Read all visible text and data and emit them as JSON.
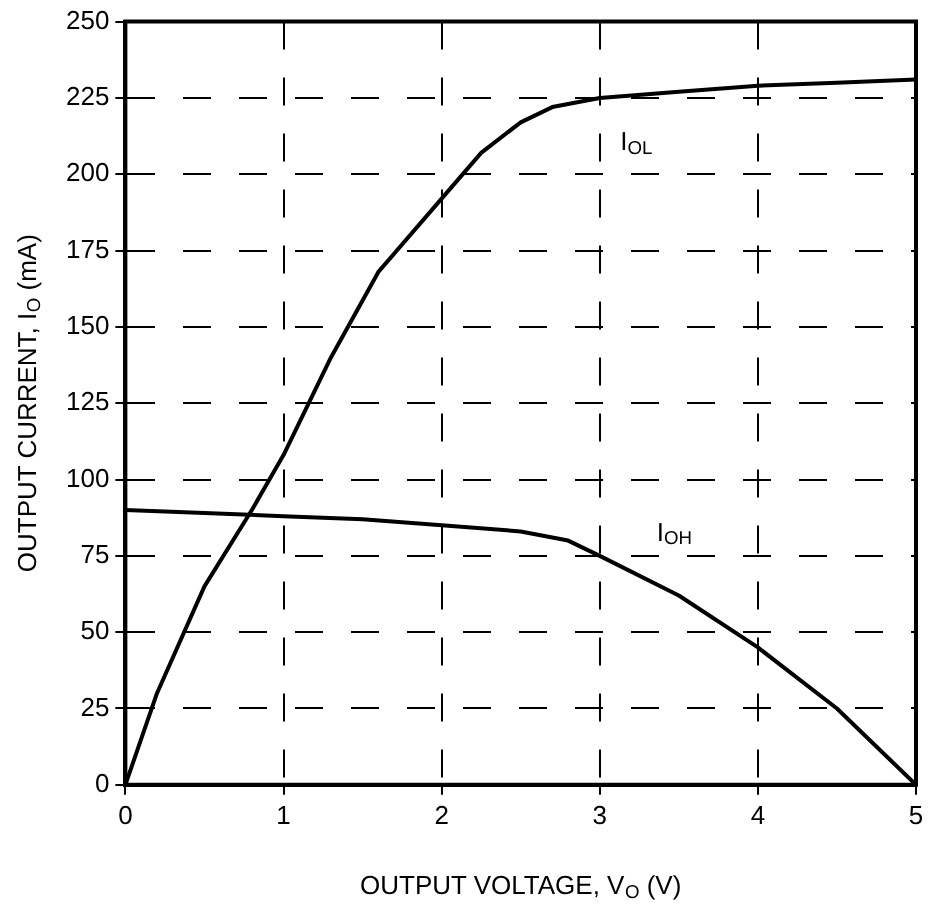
{
  "chart_data": {
    "type": "line",
    "xlabel": "OUTPUT VOLTAGE, V$_{O}$ (V)",
    "ylabel": "OUTPUT CURRENT, I$_{O}$ (mA)",
    "xlim": [
      0,
      5
    ],
    "xticks": [
      0,
      1,
      2,
      3,
      4,
      5
    ],
    "ylim": [
      0,
      250
    ],
    "yticks": [
      0,
      25,
      50,
      75,
      100,
      125,
      150,
      175,
      200,
      225,
      250
    ],
    "grid": true,
    "legend": false,
    "marker": "none",
    "line_style": "solid",
    "series": [
      {
        "name": "I$_{OL}$",
        "color": "#000000",
        "x": [
          0,
          0.2,
          0.5,
          0.8,
          1,
          1.3,
          1.6,
          2,
          2.25,
          2.5,
          2.7,
          3,
          3.5,
          4,
          4.5,
          5
        ],
        "values": [
          0,
          30,
          65,
          90,
          108,
          140,
          168,
          192,
          207,
          217,
          222,
          225,
          227,
          229,
          230,
          231
        ]
      },
      {
        "name": "I$_{OH}$",
        "color": "#000000",
        "x": [
          0,
          0.5,
          1,
          1.5,
          2,
          2.5,
          2.8,
          3,
          3.5,
          4,
          4.5,
          5
        ],
        "values": [
          90,
          89,
          88,
          87,
          85,
          83,
          80,
          75,
          62,
          45,
          25,
          0
        ]
      }
    ]
  }
}
